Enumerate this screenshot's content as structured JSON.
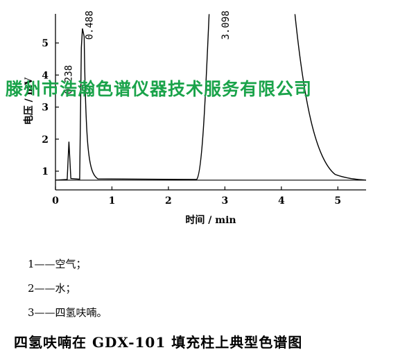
{
  "chart_data": {
    "type": "line",
    "xlabel": "时间 / min",
    "ylabel": "电压 / mV",
    "xlim": [
      0,
      5.5
    ],
    "ylim": [
      0.7,
      5.9
    ],
    "xticks": [
      0,
      1,
      2,
      3,
      4,
      5
    ],
    "yticks": [
      1,
      2,
      3,
      4,
      5
    ],
    "grid": false,
    "baseline": 0.72,
    "peaks": [
      {
        "label": "0.238",
        "time": 0.238,
        "height": 1.92,
        "clipped": false
      },
      {
        "label": "0.488",
        "time": 0.488,
        "height": 5.45,
        "clipped": false
      },
      {
        "label": "3.098",
        "time": 3.098,
        "height": 5.9,
        "clipped": true
      }
    ]
  },
  "watermark": "滕州市浩瀚色谱仪器技术服务有限公司",
  "legend": [
    {
      "text": "1——空气；"
    },
    {
      "text": "2——水；"
    },
    {
      "text": "3——四氢呋喃。"
    }
  ],
  "caption": "四氢呋喃在 GDX-101 填充柱上典型色谱图"
}
